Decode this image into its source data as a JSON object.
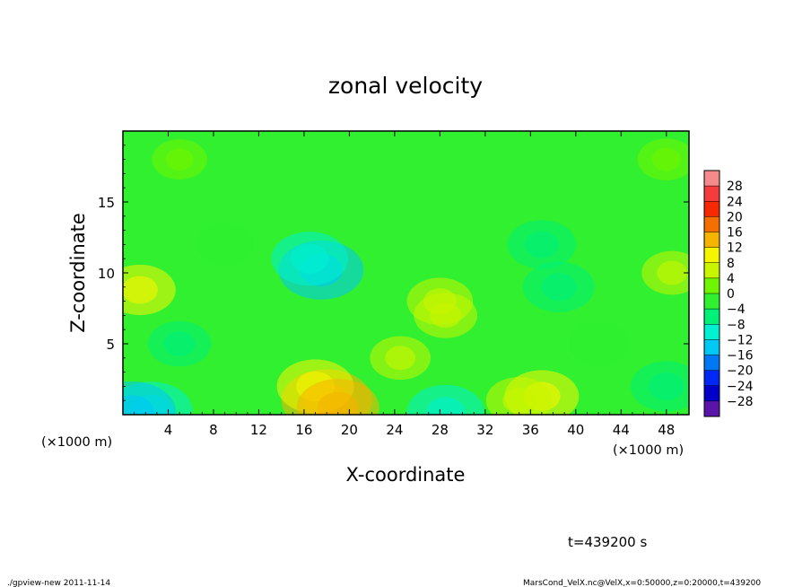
{
  "chart_data": {
    "type": "heatmap",
    "title": "zonal velocity",
    "xlabel": "X-coordinate",
    "ylabel": "Z-coordinate",
    "x_unit_left": "(×1000 m)",
    "x_unit_right": "(×1000 m)",
    "xlim": [
      0,
      50
    ],
    "ylim": [
      0,
      20
    ],
    "xticks": [
      4,
      8,
      12,
      16,
      20,
      24,
      28,
      32,
      36,
      40,
      44,
      48
    ],
    "yticks": [
      5,
      10,
      15
    ],
    "colorbar": {
      "levels": [
        28,
        24,
        20,
        16,
        12,
        8,
        4,
        0,
        -4,
        -8,
        -12,
        -16,
        -20,
        -24,
        -28
      ],
      "level_labels": [
        "28",
        "24",
        "20",
        "16",
        "12",
        "8",
        "4",
        "0",
        "−4",
        "−8",
        "−12",
        "−16",
        "−20",
        "−24",
        "−28"
      ],
      "colors_top_to_bottom": [
        "#f58a8a",
        "#f53c3c",
        "#f52a00",
        "#f56e00",
        "#f5b400",
        "#f5f500",
        "#c8f500",
        "#70f500",
        "#30f030",
        "#00f078",
        "#00f0d2",
        "#00c8f5",
        "#0078f5",
        "#0028f5",
        "#0000c8",
        "#5a14aa"
      ]
    },
    "features": [
      {
        "x": 17.5,
        "z": 10.2,
        "value": -13
      },
      {
        "x": 16.5,
        "z": 11.0,
        "value": -10
      },
      {
        "x": 37.0,
        "z": 12.0,
        "value": -7
      },
      {
        "x": 38.5,
        "z": 9.0,
        "value": -8
      },
      {
        "x": 5.0,
        "z": 5.0,
        "value": -5
      },
      {
        "x": 9.0,
        "z": 12.0,
        "value": -3
      },
      {
        "x": 1.5,
        "z": 8.8,
        "value": 8
      },
      {
        "x": 28.0,
        "z": 8.0,
        "value": 6
      },
      {
        "x": 28.5,
        "z": 7.0,
        "value": 5
      },
      {
        "x": 2.5,
        "z": 0.3,
        "value": -12
      },
      {
        "x": 0.8,
        "z": 0.2,
        "value": -14
      },
      {
        "x": 18.0,
        "z": 1.0,
        "value": 15
      },
      {
        "x": 17.0,
        "z": 2.0,
        "value": 10
      },
      {
        "x": 19.0,
        "z": 0.5,
        "value": 12
      },
      {
        "x": 28.5,
        "z": 0.2,
        "value": -10
      },
      {
        "x": 37.0,
        "z": 1.3,
        "value": 9
      },
      {
        "x": 35.0,
        "z": 1.0,
        "value": 6
      },
      {
        "x": 48.0,
        "z": 2.0,
        "value": -8
      },
      {
        "x": 42.0,
        "z": 5.0,
        "value": -4
      },
      {
        "x": 24.5,
        "z": 4.0,
        "value": 4
      },
      {
        "x": 48.5,
        "z": 10.0,
        "value": 4
      },
      {
        "x": 48.0,
        "z": 18.0,
        "value": 3
      },
      {
        "x": 5.0,
        "z": 18.0,
        "value": 2
      }
    ]
  },
  "annotations": {
    "time": "t=439200 s",
    "footer_left": "./gpview-new   2011-11-14",
    "footer_right": "MarsCond_VelX.nc@VelX,x=0:50000,z=0:20000,t=439200"
  }
}
